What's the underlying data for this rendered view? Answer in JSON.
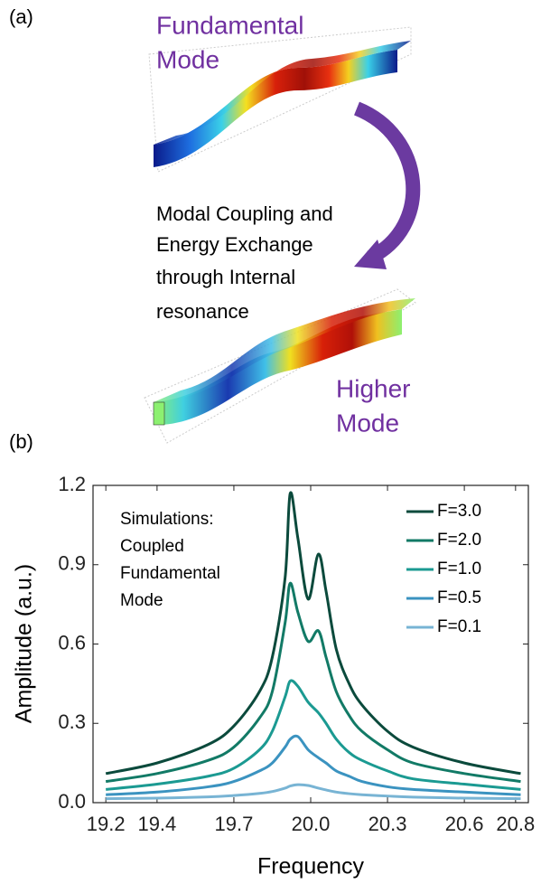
{
  "panel_labels": {
    "a": "(a)",
    "b": "(b)"
  },
  "panel_a": {
    "top_label": [
      "Fundamental",
      "Mode"
    ],
    "caption": [
      "Modal Coupling and",
      "Energy Exchange",
      "through Internal",
      "resonance"
    ],
    "bottom_label": [
      "Higher",
      "Mode"
    ]
  },
  "chart_data": {
    "type": "line",
    "xlabel": "Frequency",
    "ylabel": "Amplitude (a.u.)",
    "annotation": [
      "Simulations:",
      "Coupled",
      "Fundamental",
      "Mode"
    ],
    "x": [
      19.2,
      19.4,
      19.6,
      19.7,
      19.8,
      19.85,
      19.9,
      19.92,
      19.95,
      19.99,
      20.03,
      20.06,
      20.1,
      20.15,
      20.2,
      20.3,
      20.4,
      20.6,
      20.82
    ],
    "series": [
      {
        "name": "F=3.0",
        "color": "#0b4a3c",
        "values": [
          0.11,
          0.15,
          0.22,
          0.29,
          0.42,
          0.55,
          0.85,
          1.17,
          1.0,
          0.77,
          0.94,
          0.8,
          0.58,
          0.45,
          0.37,
          0.27,
          0.21,
          0.15,
          0.11
        ]
      },
      {
        "name": "F=2.0",
        "color": "#127a66",
        "values": [
          0.08,
          0.11,
          0.16,
          0.21,
          0.32,
          0.42,
          0.68,
          0.83,
          0.72,
          0.61,
          0.65,
          0.55,
          0.42,
          0.33,
          0.27,
          0.2,
          0.15,
          0.11,
          0.08
        ]
      },
      {
        "name": "F=1.0",
        "color": "#1b9a92",
        "values": [
          0.05,
          0.07,
          0.1,
          0.13,
          0.2,
          0.27,
          0.4,
          0.46,
          0.44,
          0.38,
          0.34,
          0.3,
          0.24,
          0.19,
          0.16,
          0.12,
          0.09,
          0.07,
          0.05
        ]
      },
      {
        "name": "F=0.5",
        "color": "#3b93c0",
        "values": [
          0.03,
          0.04,
          0.06,
          0.08,
          0.12,
          0.15,
          0.21,
          0.24,
          0.25,
          0.2,
          0.17,
          0.15,
          0.12,
          0.1,
          0.08,
          0.06,
          0.05,
          0.04,
          0.03
        ]
      },
      {
        "name": "F=0.1",
        "color": "#78b4d4",
        "values": [
          0.015,
          0.017,
          0.022,
          0.027,
          0.035,
          0.042,
          0.055,
          0.063,
          0.068,
          0.065,
          0.055,
          0.048,
          0.04,
          0.034,
          0.03,
          0.025,
          0.021,
          0.017,
          0.015
        ]
      }
    ],
    "xlim": [
      19.15,
      20.85
    ],
    "xticks": [
      19.2,
      19.4,
      19.7,
      {
        "value": 20,
        "label": "20.0"
      },
      20.3,
      20.6,
      20.8
    ],
    "ylim": [
      0,
      1.2
    ],
    "yticks": [
      {
        "value": 0,
        "label": "0.0"
      },
      0.3,
      0.6,
      0.9,
      1.2
    ],
    "legend": "upper right",
    "grid": false
  }
}
